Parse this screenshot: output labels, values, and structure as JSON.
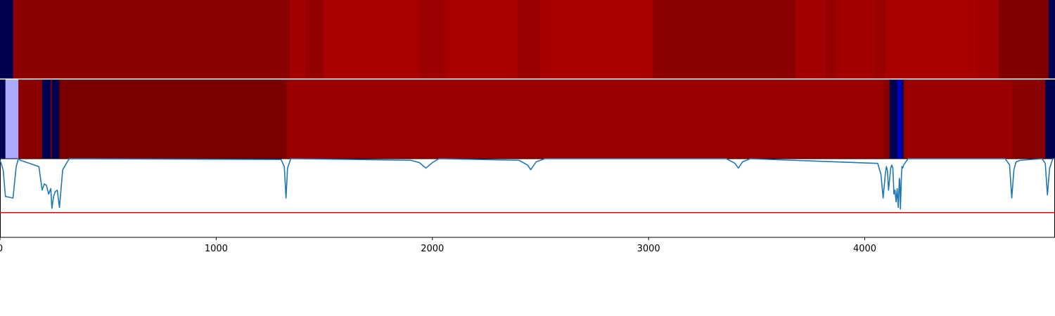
{
  "chart_data": [
    {
      "type": "heatmap",
      "x_range": [
        0,
        4880
      ],
      "segments": [
        {
          "start": 0,
          "end": 60,
          "color": "#000050"
        },
        {
          "start": 60,
          "end": 1340,
          "color": "#8b0000"
        },
        {
          "start": 1340,
          "end": 1415,
          "color": "#a30000"
        },
        {
          "start": 1415,
          "end": 1495,
          "color": "#950000"
        },
        {
          "start": 1495,
          "end": 1940,
          "color": "#a80000"
        },
        {
          "start": 1940,
          "end": 2065,
          "color": "#9c0000"
        },
        {
          "start": 2065,
          "end": 2395,
          "color": "#a80000"
        },
        {
          "start": 2395,
          "end": 2500,
          "color": "#9b0000"
        },
        {
          "start": 2500,
          "end": 3020,
          "color": "#a80000"
        },
        {
          "start": 3020,
          "end": 3680,
          "color": "#8b0000"
        },
        {
          "start": 3680,
          "end": 3820,
          "color": "#a20000"
        },
        {
          "start": 3820,
          "end": 3865,
          "color": "#960000"
        },
        {
          "start": 3865,
          "end": 4045,
          "color": "#a30000"
        },
        {
          "start": 4045,
          "end": 4095,
          "color": "#990000"
        },
        {
          "start": 4095,
          "end": 4520,
          "color": "#a80000"
        },
        {
          "start": 4520,
          "end": 4620,
          "color": "#a10000"
        },
        {
          "start": 4620,
          "end": 4850,
          "color": "#800000"
        },
        {
          "start": 4850,
          "end": 4880,
          "color": "#000050"
        }
      ]
    },
    {
      "type": "heatmap",
      "x_range": [
        0,
        4880
      ],
      "segments": [
        {
          "start": 0,
          "end": 25,
          "color": "#000050"
        },
        {
          "start": 25,
          "end": 85,
          "color": "#aaaaff"
        },
        {
          "start": 85,
          "end": 195,
          "color": "#8b0000"
        },
        {
          "start": 195,
          "end": 235,
          "color": "#000050"
        },
        {
          "start": 235,
          "end": 240,
          "color": "#8b0000"
        },
        {
          "start": 240,
          "end": 275,
          "color": "#000050"
        },
        {
          "start": 275,
          "end": 1325,
          "color": "#7a0000"
        },
        {
          "start": 1325,
          "end": 4085,
          "color": "#9b0000"
        },
        {
          "start": 4085,
          "end": 4115,
          "color": "#880000"
        },
        {
          "start": 4115,
          "end": 4150,
          "color": "#000050"
        },
        {
          "start": 4150,
          "end": 4170,
          "color": "#0000cc"
        },
        {
          "start": 4170,
          "end": 4180,
          "color": "#000050"
        },
        {
          "start": 4180,
          "end": 4680,
          "color": "#9b0000"
        },
        {
          "start": 4680,
          "end": 4835,
          "color": "#8b0000"
        },
        {
          "start": 4835,
          "end": 4880,
          "color": "#000050"
        }
      ]
    },
    {
      "type": "line",
      "x_range": [
        0,
        4880
      ],
      "y_range": [
        0,
        1
      ],
      "xticks": [
        0,
        1000,
        2000,
        3000,
        4000
      ],
      "xtick_labels": [
        "0",
        "1000",
        "2000",
        "3000",
        "4000"
      ],
      "series": [
        {
          "color": "#1f77b4",
          "x": [
            0,
            8,
            15,
            25,
            60,
            75,
            85,
            95,
            180,
            195,
            205,
            215,
            225,
            235,
            240,
            248,
            255,
            265,
            275,
            290,
            320,
            1300,
            1315,
            1323,
            1330,
            1345,
            1360,
            1900,
            1940,
            1970,
            2000,
            2030,
            2400,
            2440,
            2455,
            2480,
            2520,
            3360,
            3400,
            3415,
            3435,
            3470,
            4060,
            4075,
            4085,
            4095,
            4100,
            4105,
            4110,
            4120,
            4125,
            4130,
            4135,
            4140,
            4145,
            4150,
            4155,
            4160,
            4162,
            4165,
            4170,
            4172,
            4175,
            4180,
            4200,
            4650,
            4670,
            4680,
            4690,
            4700,
            4720,
            4820,
            4835,
            4845,
            4855,
            4870,
            4880
          ],
          "y": [
            0.98,
            0.92,
            0.85,
            0.52,
            0.5,
            0.9,
            1.0,
            0.98,
            0.9,
            0.6,
            0.68,
            0.66,
            0.55,
            0.62,
            0.37,
            0.52,
            0.58,
            0.6,
            0.38,
            0.86,
            1.0,
            0.99,
            0.9,
            0.5,
            0.88,
            1.0,
            1.0,
            0.98,
            0.95,
            0.88,
            0.95,
            1.0,
            0.98,
            0.92,
            0.86,
            0.96,
            1.0,
            1.0,
            0.94,
            0.88,
            0.96,
            1.0,
            0.94,
            0.8,
            0.5,
            0.8,
            0.9,
            0.85,
            0.6,
            0.88,
            0.92,
            0.88,
            0.55,
            0.6,
            0.45,
            0.62,
            0.38,
            0.75,
            0.72,
            0.36,
            0.8,
            0.9,
            0.88,
            0.92,
            1.0,
            1.0,
            0.92,
            0.5,
            0.86,
            0.96,
            0.98,
            1.0,
            0.94,
            0.54,
            0.88,
            1.0,
            1.0
          ]
        }
      ],
      "hline": {
        "y": 0.315,
        "color": "#e00000"
      }
    }
  ]
}
